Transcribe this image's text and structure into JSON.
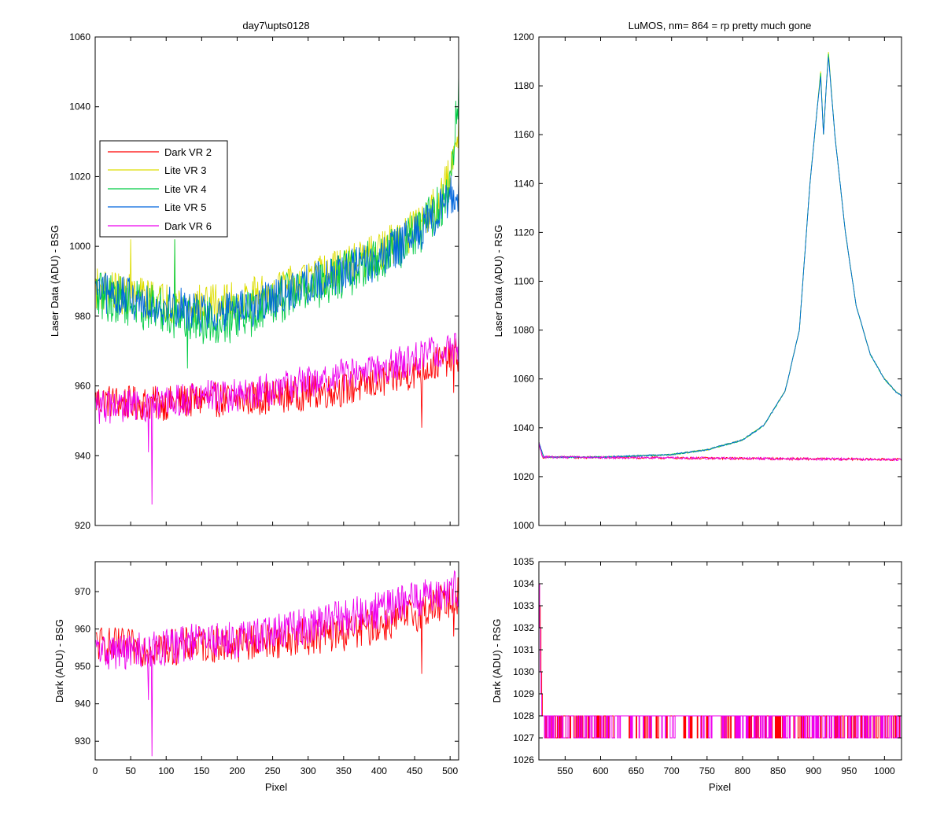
{
  "figure": {
    "background": "#ffffff"
  },
  "legend": {
    "entries": [
      {
        "name": "Dark VR 2",
        "color": "#ff0000"
      },
      {
        "name": "Lite VR 3",
        "color": "#dddd00"
      },
      {
        "name": "Lite VR 4",
        "color": "#00cc44"
      },
      {
        "name": "Lite VR 5",
        "color": "#0066dd"
      },
      {
        "name": "Dark VR 6",
        "color": "#ee00ee"
      }
    ]
  },
  "chart_data": [
    {
      "id": "bsg-laser",
      "type": "line",
      "title": "day7\\upts0128",
      "xlabel": "",
      "ylabel": "Laser Data (ADU) - BSG",
      "xlim": [
        0,
        512
      ],
      "ylim": [
        920,
        1060
      ],
      "xticks": [
        0,
        50,
        100,
        150,
        200,
        250,
        300,
        350,
        400,
        450,
        500
      ],
      "xtick_labels_visible": false,
      "yticks": [
        920,
        940,
        960,
        980,
        1000,
        1020,
        1040,
        1060
      ],
      "legend_placement": "upper-left",
      "grid": false,
      "x_range": [
        1,
        512
      ],
      "series": [
        {
          "name": "Dark VR 2",
          "color": "#ff0000",
          "approx_points": [
            [
              1,
              956
            ],
            [
              50,
              955
            ],
            [
              100,
              955
            ],
            [
              150,
              956
            ],
            [
              200,
              956
            ],
            [
              250,
              957
            ],
            [
              300,
              958
            ],
            [
              350,
              959
            ],
            [
              400,
              961
            ],
            [
              450,
              964
            ],
            [
              512,
              969
            ]
          ],
          "noise_amplitude": 5,
          "spikes": [
            [
              460,
              948
            ],
            [
              505,
              958
            ]
          ]
        },
        {
          "name": "Lite VR 3",
          "color": "#dddd00",
          "approx_points": [
            [
              1,
              988
            ],
            [
              50,
              986
            ],
            [
              100,
              984
            ],
            [
              150,
              983
            ],
            [
              200,
              984
            ],
            [
              250,
              987
            ],
            [
              300,
              990
            ],
            [
              350,
              994
            ],
            [
              400,
              998
            ],
            [
              450,
              1005
            ],
            [
              480,
              1012
            ],
            [
              500,
              1020
            ],
            [
              512,
              1035
            ]
          ],
          "noise_amplitude": 6,
          "spikes": [
            [
              50,
              1002
            ],
            [
              112,
              1002
            ]
          ]
        },
        {
          "name": "Lite VR 4",
          "color": "#00cc44",
          "approx_points": [
            [
              1,
              986
            ],
            [
              50,
              984
            ],
            [
              100,
              981
            ],
            [
              150,
              979
            ],
            [
              200,
              979
            ],
            [
              250,
              984
            ],
            [
              300,
              988
            ],
            [
              350,
              992
            ],
            [
              400,
              996
            ],
            [
              450,
              1003
            ],
            [
              480,
              1010
            ],
            [
              500,
              1016
            ],
            [
              512,
              1045
            ]
          ],
          "noise_amplitude": 7,
          "spikes": [
            [
              112,
              1002
            ],
            [
              130,
              965
            ]
          ]
        },
        {
          "name": "Lite VR 5",
          "color": "#0066dd",
          "approx_points": [
            [
              1,
              987
            ],
            [
              50,
              985
            ],
            [
              100,
              983
            ],
            [
              150,
              981
            ],
            [
              200,
              981
            ],
            [
              250,
              985
            ],
            [
              300,
              989
            ],
            [
              350,
              993
            ],
            [
              400,
              996
            ],
            [
              450,
              1003
            ],
            [
              480,
              1009
            ],
            [
              500,
              1015
            ]
          ],
          "noise_amplitude": 6,
          "spikes": []
        },
        {
          "name": "Dark VR 6",
          "color": "#ee00ee",
          "approx_points": [
            [
              1,
              954
            ],
            [
              50,
              954
            ],
            [
              100,
              955
            ],
            [
              150,
              957
            ],
            [
              200,
              957
            ],
            [
              250,
              959
            ],
            [
              300,
              961
            ],
            [
              350,
              963
            ],
            [
              400,
              965
            ],
            [
              450,
              968
            ],
            [
              512,
              971
            ]
          ],
          "noise_amplitude": 5,
          "spikes": [
            [
              80,
              926
            ],
            [
              75,
              941
            ]
          ]
        }
      ]
    },
    {
      "id": "rsg-laser",
      "type": "line",
      "title": "LuMOS, nm= 864 = rp pretty much gone",
      "xlabel": "",
      "ylabel": "Laser Data (ADU) - RSG",
      "xlim": [
        513,
        1024
      ],
      "ylim": [
        1000,
        1200
      ],
      "xticks": [
        550,
        600,
        650,
        700,
        750,
        800,
        850,
        900,
        950,
        1000
      ],
      "xtick_labels_visible": false,
      "yticks": [
        1000,
        1020,
        1040,
        1060,
        1080,
        1100,
        1120,
        1140,
        1160,
        1180,
        1200
      ],
      "grid": false,
      "x_range": [
        513,
        1024
      ],
      "series": [
        {
          "name": "Dark VR 2",
          "color": "#ff0000",
          "approx_points": [
            [
              513,
              1034
            ],
            [
              518,
              1028
            ],
            [
              1024,
              1027
            ]
          ],
          "noise_amplitude": 0.5,
          "spikes": []
        },
        {
          "name": "Lite VR 3",
          "color": "#dddd00",
          "approx_points": [
            [
              513,
              1034
            ],
            [
              520,
              1028
            ],
            [
              600,
              1028
            ],
            [
              700,
              1029
            ],
            [
              750,
              1031
            ],
            [
              800,
              1035
            ],
            [
              830,
              1041
            ],
            [
              860,
              1055
            ],
            [
              880,
              1080
            ],
            [
              895,
              1140
            ],
            [
              905,
              1170
            ],
            [
              910,
              1186
            ],
            [
              914,
              1160
            ],
            [
              918,
              1180
            ],
            [
              921,
              1194
            ],
            [
              930,
              1160
            ],
            [
              945,
              1120
            ],
            [
              960,
              1090
            ],
            [
              980,
              1070
            ],
            [
              1000,
              1060
            ],
            [
              1015,
              1055
            ],
            [
              1024,
              1053
            ]
          ],
          "noise_amplitude": 0.3,
          "spikes": []
        },
        {
          "name": "Lite VR 4",
          "color": "#00cc44",
          "approx_points": [
            [
              513,
              1034
            ],
            [
              520,
              1028
            ],
            [
              600,
              1028
            ],
            [
              700,
              1029
            ],
            [
              750,
              1031
            ],
            [
              800,
              1035
            ],
            [
              830,
              1041
            ],
            [
              860,
              1055
            ],
            [
              880,
              1080
            ],
            [
              895,
              1140
            ],
            [
              905,
              1170
            ],
            [
              910,
              1185
            ],
            [
              914,
              1160
            ],
            [
              918,
              1180
            ],
            [
              921,
              1193
            ],
            [
              930,
              1160
            ],
            [
              945,
              1120
            ],
            [
              960,
              1090
            ],
            [
              980,
              1070
            ],
            [
              1000,
              1060
            ],
            [
              1015,
              1055
            ],
            [
              1024,
              1053
            ]
          ],
          "noise_amplitude": 0.3,
          "spikes": []
        },
        {
          "name": "Lite VR 5",
          "color": "#0066dd",
          "approx_points": [
            [
              513,
              1034
            ],
            [
              520,
              1028
            ],
            [
              600,
              1028
            ],
            [
              700,
              1029
            ],
            [
              750,
              1031
            ],
            [
              800,
              1035
            ],
            [
              830,
              1041
            ],
            [
              860,
              1055
            ],
            [
              880,
              1080
            ],
            [
              895,
              1140
            ],
            [
              905,
              1170
            ],
            [
              910,
              1184
            ],
            [
              914,
              1160
            ],
            [
              918,
              1180
            ],
            [
              921,
              1192
            ],
            [
              930,
              1160
            ],
            [
              945,
              1120
            ],
            [
              960,
              1090
            ],
            [
              980,
              1070
            ],
            [
              1000,
              1060
            ],
            [
              1015,
              1055
            ],
            [
              1024,
              1053
            ]
          ],
          "noise_amplitude": 0.3,
          "spikes": []
        },
        {
          "name": "Dark VR 6",
          "color": "#ee00ee",
          "approx_points": [
            [
              513,
              1034
            ],
            [
              518,
              1028
            ],
            [
              1024,
              1027
            ]
          ],
          "noise_amplitude": 0.5,
          "spikes": []
        }
      ]
    },
    {
      "id": "bsg-dark",
      "type": "line",
      "title": "",
      "xlabel": "Pixel",
      "ylabel": "Dark (ADU) - BSG",
      "xlim": [
        0,
        512
      ],
      "ylim": [
        925,
        978
      ],
      "xticks": [
        0,
        50,
        100,
        150,
        200,
        250,
        300,
        350,
        400,
        450,
        500
      ],
      "xtick_labels_visible": true,
      "yticks": [
        930,
        940,
        950,
        960,
        970
      ],
      "grid": false,
      "x_range": [
        1,
        512
      ],
      "series": [
        {
          "name": "Dark VR 2",
          "color": "#ff0000",
          "approx_points": [
            [
              1,
              956
            ],
            [
              50,
              955
            ],
            [
              100,
              955
            ],
            [
              150,
              956
            ],
            [
              200,
              956
            ],
            [
              250,
              957
            ],
            [
              300,
              958
            ],
            [
              350,
              959
            ],
            [
              400,
              961
            ],
            [
              450,
              964
            ],
            [
              512,
              969
            ]
          ],
          "noise_amplitude": 5,
          "spikes": [
            [
              460,
              948
            ],
            [
              505,
              958
            ]
          ]
        },
        {
          "name": "Dark VR 6",
          "color": "#ee00ee",
          "approx_points": [
            [
              1,
              954
            ],
            [
              50,
              954
            ],
            [
              100,
              955
            ],
            [
              150,
              957
            ],
            [
              200,
              957
            ],
            [
              250,
              959
            ],
            [
              300,
              961
            ],
            [
              350,
              963
            ],
            [
              400,
              965
            ],
            [
              450,
              968
            ],
            [
              512,
              971
            ]
          ],
          "noise_amplitude": 5,
          "spikes": [
            [
              80,
              926
            ],
            [
              75,
              941
            ]
          ]
        }
      ]
    },
    {
      "id": "rsg-dark",
      "type": "line",
      "title": "",
      "xlabel": "Pixel",
      "ylabel": "Dark (ADU) - RSG",
      "xlim": [
        513,
        1024
      ],
      "ylim": [
        1026,
        1035
      ],
      "xticks": [
        550,
        600,
        650,
        700,
        750,
        800,
        850,
        900,
        950,
        1000
      ],
      "xtick_labels_visible": true,
      "yticks": [
        1026,
        1027,
        1028,
        1029,
        1030,
        1031,
        1032,
        1033,
        1034,
        1035
      ],
      "grid": false,
      "x_range": [
        513,
        1024
      ],
      "quantized": true,
      "series": [
        {
          "name": "Dark VR 2",
          "color": "#ff0000",
          "approx_points": [
            [
              513,
              1034
            ],
            [
              516,
              1030
            ],
            [
              518,
              1028
            ],
            [
              1024,
              1027.5
            ]
          ],
          "noise_amplitude": 0.5,
          "spikes": []
        },
        {
          "name": "Dark VR 6",
          "color": "#ee00ee",
          "approx_points": [
            [
              513,
              1034
            ],
            [
              516,
              1029
            ],
            [
              518,
              1028
            ],
            [
              1024,
              1027.5
            ]
          ],
          "noise_amplitude": 0.5,
          "spikes": []
        }
      ]
    }
  ]
}
